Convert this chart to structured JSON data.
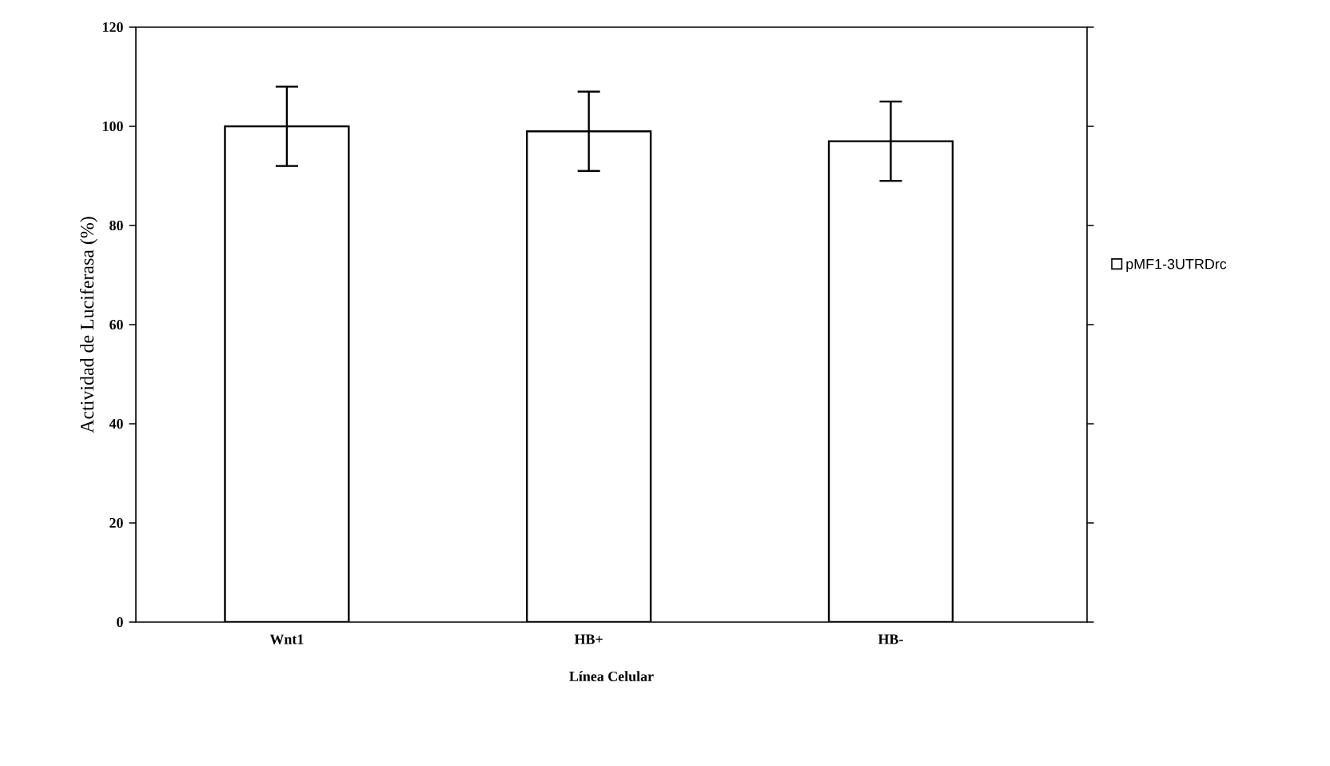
{
  "chart_data": {
    "type": "bar",
    "xlabel": "Línea Celular",
    "ylabel": "Actividad de Luciferasa (%)",
    "categories": [
      "Wnt1",
      "HB+",
      "HB-"
    ],
    "series": [
      {
        "name": "pMF1-3UTRDrc",
        "color": "#ffffff",
        "values": [
          100,
          99,
          97
        ],
        "errors": [
          8,
          8,
          8
        ]
      }
    ],
    "ylim": [
      0,
      120
    ],
    "yticks": [
      0,
      20,
      40,
      60,
      80,
      100,
      120
    ],
    "legend": "right"
  }
}
